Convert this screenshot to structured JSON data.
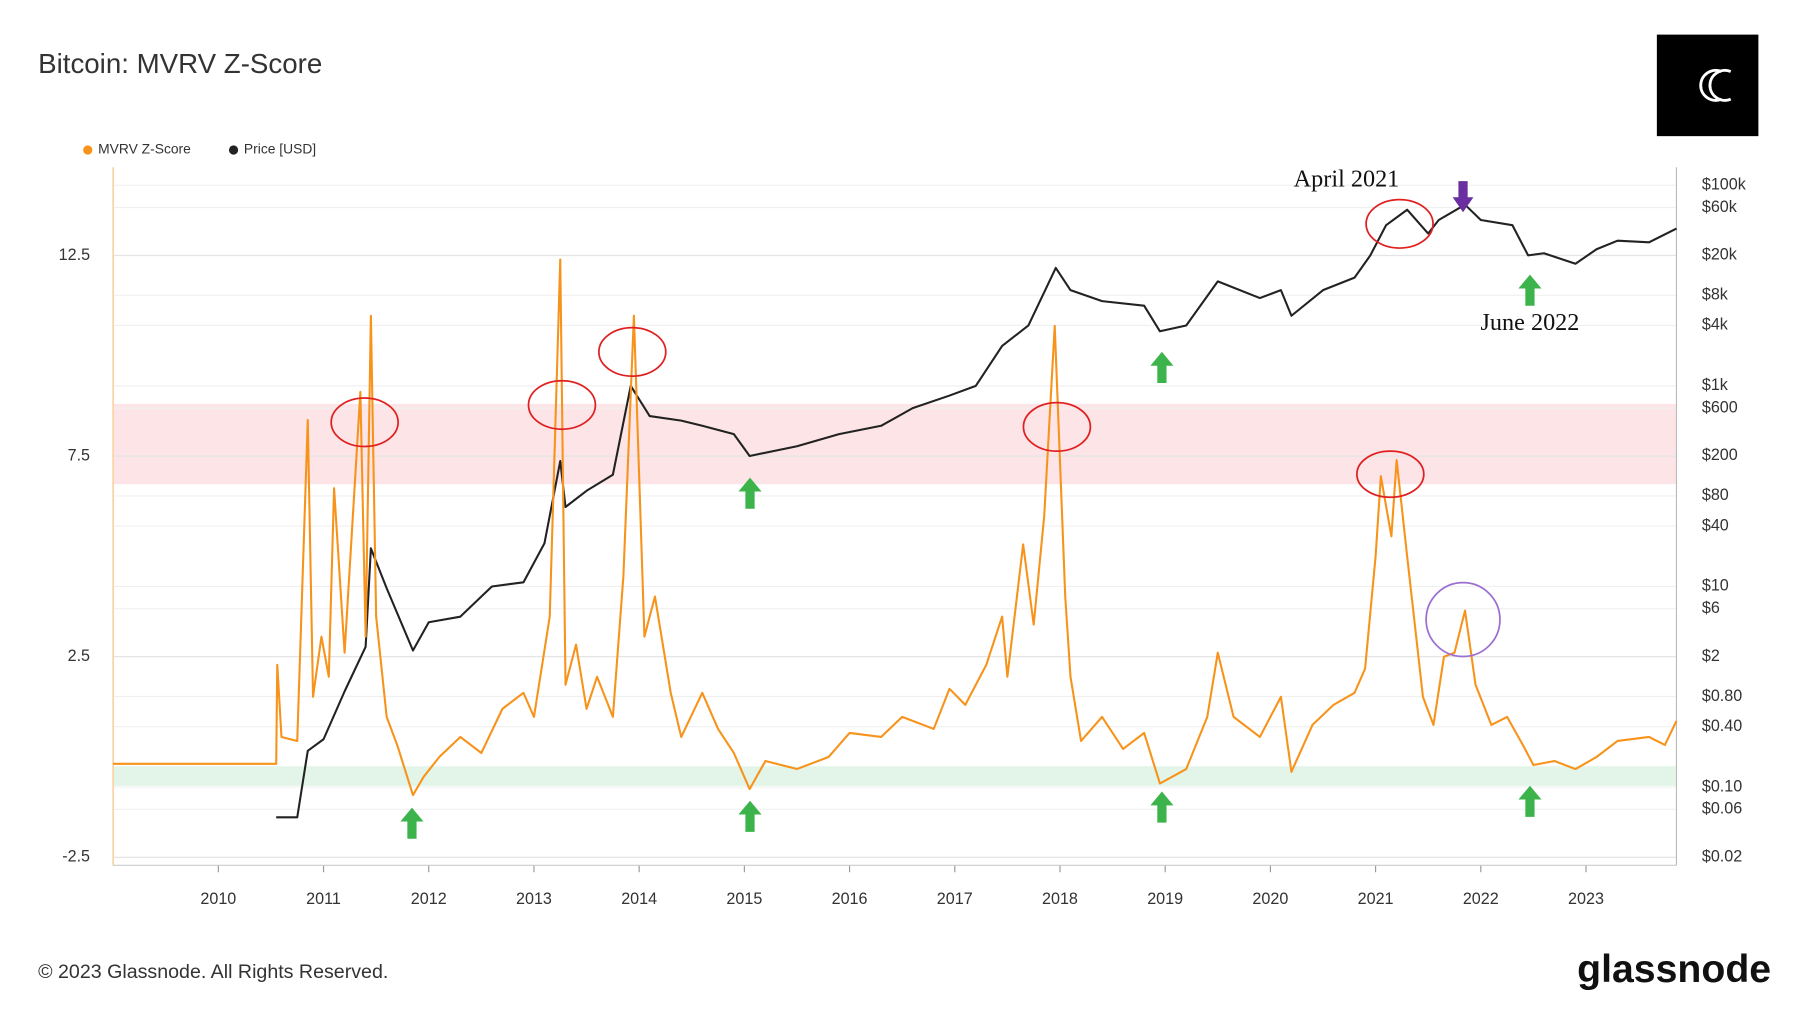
{
  "chart_data": {
    "type": "line",
    "title": "Bitcoin: MVRV Z-Score",
    "footer": "© 2023 Glassnode. All Rights Reserved.",
    "brand": "glassnode",
    "annotations": [
      "April 2021",
      "June 2022"
    ],
    "xlim": [
      2009.0,
      2023.86
    ],
    "xticks": [
      2010,
      2011,
      2012,
      2013,
      2014,
      2015,
      2016,
      2017,
      2018,
      2019,
      2020,
      2021,
      2022,
      2023
    ],
    "ylim": [
      -2.7,
      14.7
    ],
    "yticks": [
      -2.5,
      2.5,
      7.5,
      12.5
    ],
    "y2lim": [
      0.0166,
      151000
    ],
    "y2scale": "log",
    "y2ticks": [
      {
        "value": 100000,
        "label": "$100k"
      },
      {
        "value": 60000,
        "label": "$60k"
      },
      {
        "value": 20000,
        "label": "$20k"
      },
      {
        "value": 8000,
        "label": "$8k"
      },
      {
        "value": 4000,
        "label": "$4k"
      },
      {
        "value": 1000,
        "label": "$1k"
      },
      {
        "value": 600,
        "label": "$600"
      },
      {
        "value": 200,
        "label": "$200"
      },
      {
        "value": 80,
        "label": "$80"
      },
      {
        "value": 40,
        "label": "$40"
      },
      {
        "value": 10,
        "label": "$10"
      },
      {
        "value": 6,
        "label": "$6"
      },
      {
        "value": 2,
        "label": "$2"
      },
      {
        "value": 0.8,
        "label": "$0.80"
      },
      {
        "value": 0.4,
        "label": "$0.40"
      },
      {
        "value": 0.1,
        "label": "$0.10"
      },
      {
        "value": 0.06,
        "label": "$0.06"
      },
      {
        "value": 0.02,
        "label": "$0.02"
      }
    ],
    "grid": true,
    "legend": "top-left",
    "bands": [
      {
        "from": 6.8,
        "to": 8.8,
        "color": "#fde4e6"
      },
      {
        "from": -0.72,
        "to": -0.23,
        "color": "#e2f5e8"
      }
    ],
    "series": [
      {
        "name": "MVRV Z-Score",
        "color": "#f7931a",
        "x": [
          2009.0,
          2010.55,
          2010.56,
          2010.6,
          2010.75,
          2010.85,
          2010.9,
          2010.98,
          2011.05,
          2011.1,
          2011.2,
          2011.35,
          2011.4,
          2011.45,
          2011.5,
          2011.6,
          2011.7,
          2011.85,
          2011.95,
          2012.1,
          2012.3,
          2012.5,
          2012.7,
          2012.9,
          2013.0,
          2013.15,
          2013.25,
          2013.3,
          2013.4,
          2013.5,
          2013.6,
          2013.75,
          2013.85,
          2013.95,
          2014.05,
          2014.15,
          2014.3,
          2014.4,
          2014.6,
          2014.75,
          2014.9,
          2015.05,
          2015.2,
          2015.5,
          2015.8,
          2016.0,
          2016.3,
          2016.5,
          2016.8,
          2016.95,
          2017.1,
          2017.3,
          2017.45,
          2017.5,
          2017.65,
          2017.75,
          2017.85,
          2017.95,
          2018.05,
          2018.1,
          2018.2,
          2018.4,
          2018.6,
          2018.8,
          2018.95,
          2019.2,
          2019.4,
          2019.5,
          2019.65,
          2019.9,
          2020.1,
          2020.2,
          2020.4,
          2020.6,
          2020.8,
          2020.9,
          2021.0,
          2021.05,
          2021.15,
          2021.2,
          2021.3,
          2021.45,
          2021.55,
          2021.65,
          2021.75,
          2021.85,
          2021.95,
          2022.1,
          2022.25,
          2022.4,
          2022.5,
          2022.7,
          2022.9,
          2023.1,
          2023.3,
          2023.6,
          2023.75,
          2023.86
        ],
        "values": [
          -0.17,
          -0.17,
          2.3,
          0.5,
          0.4,
          8.4,
          1.5,
          3.0,
          2.0,
          6.7,
          2.6,
          9.1,
          3.0,
          11.0,
          3.5,
          1.0,
          0.3,
          -0.95,
          -0.5,
          0.0,
          0.5,
          0.1,
          1.2,
          1.6,
          1.0,
          3.5,
          12.4,
          1.8,
          2.8,
          1.2,
          2.0,
          1.0,
          4.5,
          11.0,
          3.0,
          4.0,
          1.6,
          0.5,
          1.6,
          0.7,
          0.1,
          -0.8,
          -0.1,
          -0.3,
          0.0,
          0.6,
          0.5,
          1.0,
          0.7,
          1.7,
          1.3,
          2.3,
          3.5,
          2.0,
          5.3,
          3.3,
          6.0,
          10.75,
          4.0,
          2.0,
          0.4,
          1.0,
          0.2,
          0.6,
          -0.66,
          -0.3,
          1.0,
          2.6,
          1.0,
          0.5,
          1.5,
          -0.37,
          0.8,
          1.3,
          1.6,
          2.2,
          5.0,
          7.0,
          5.5,
          7.4,
          5.0,
          1.5,
          0.8,
          2.5,
          2.6,
          3.65,
          1.8,
          0.8,
          1.0,
          0.3,
          -0.2,
          -0.1,
          -0.3,
          0.0,
          0.4,
          0.5,
          0.3,
          0.9
        ]
      },
      {
        "name": "Price [USD]",
        "color": "#222222",
        "axis": "y2",
        "x": [
          2010.55,
          2010.75,
          2010.85,
          2011.0,
          2011.2,
          2011.4,
          2011.45,
          2011.6,
          2011.85,
          2012.0,
          2012.3,
          2012.6,
          2012.9,
          2013.1,
          2013.25,
          2013.3,
          2013.5,
          2013.75,
          2013.92,
          2014.1,
          2014.4,
          2014.6,
          2014.9,
          2015.05,
          2015.5,
          2015.9,
          2016.3,
          2016.6,
          2016.95,
          2017.2,
          2017.45,
          2017.7,
          2017.96,
          2018.1,
          2018.4,
          2018.8,
          2018.95,
          2019.2,
          2019.5,
          2019.9,
          2020.1,
          2020.2,
          2020.5,
          2020.8,
          2020.95,
          2021.1,
          2021.3,
          2021.5,
          2021.6,
          2021.85,
          2022.0,
          2022.3,
          2022.45,
          2022.6,
          2022.9,
          2023.1,
          2023.3,
          2023.6,
          2023.86
        ],
        "values": [
          0.05,
          0.05,
          0.23,
          0.3,
          0.9,
          2.5,
          24,
          9.6,
          2.3,
          4.4,
          5,
          10,
          11,
          27,
          178,
          62,
          90,
          130,
          1000,
          500,
          450,
          400,
          330,
          200,
          250,
          330,
          400,
          600,
          800,
          1000,
          2500,
          4000,
          15000,
          9000,
          7000,
          6300,
          3500,
          4000,
          11000,
          7500,
          9000,
          5000,
          9000,
          12000,
          20000,
          40000,
          57000,
          33000,
          45000,
          64000,
          45000,
          40000,
          20000,
          21000,
          16500,
          23000,
          28000,
          27000,
          37000
        ]
      }
    ]
  }
}
